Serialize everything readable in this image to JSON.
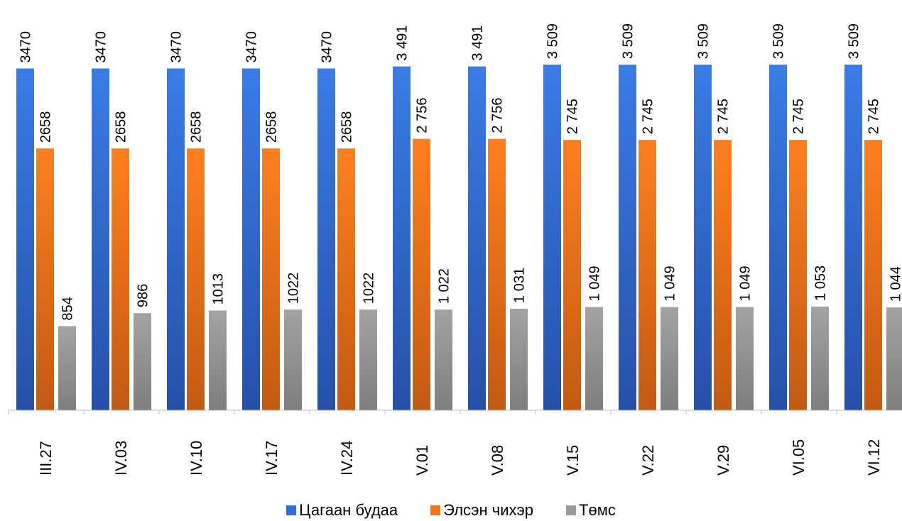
{
  "chart_data": {
    "type": "bar",
    "categories": [
      "III.27",
      "IV.03",
      "IV.10",
      "IV.17",
      "IV.24",
      "V.01",
      "V.08",
      "V.15",
      "V.22",
      "V.29",
      "VI.05",
      "VI.12"
    ],
    "series": [
      {
        "name": "Цагаан будаа",
        "color": "#2f6fd6",
        "values": [
          3470,
          3470,
          3470,
          3470,
          3470,
          3491,
          3491,
          3509,
          3509,
          3509,
          3509,
          3509
        ],
        "labels": [
          "3470",
          "3470",
          "3470",
          "3470",
          "3470",
          "3 491",
          "3 491",
          "3 509",
          "3 509",
          "3 509",
          "3 509",
          "3 509"
        ]
      },
      {
        "name": "Элсэн чихэр",
        "color": "#f2751f",
        "values": [
          2658,
          2658,
          2658,
          2658,
          2658,
          2756,
          2756,
          2745,
          2745,
          2745,
          2745,
          2745
        ],
        "labels": [
          "2658",
          "2658",
          "2658",
          "2658",
          "2658",
          "2 756",
          "2 756",
          "2 745",
          "2 745",
          "2 745",
          "2 745",
          "2 745"
        ]
      },
      {
        "name": "Төмс",
        "color": "#9a9a9a",
        "values": [
          854,
          986,
          1013,
          1022,
          1022,
          1022,
          1031,
          1049,
          1049,
          1049,
          1053,
          1044
        ],
        "labels": [
          "854",
          "986",
          "1013",
          "1022",
          "1022",
          "1 022",
          "1 031",
          "1 049",
          "1 049",
          "1 049",
          "1 053",
          "1 044"
        ]
      }
    ],
    "title": "",
    "xlabel": "",
    "ylabel": "",
    "grid": false,
    "legend_position": "bottom"
  }
}
